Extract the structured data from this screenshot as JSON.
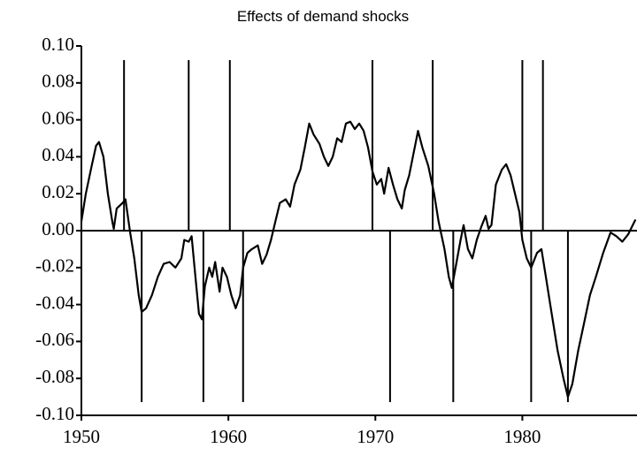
{
  "chart_data": {
    "type": "line",
    "title": "Effects of demand shocks",
    "x": [
      1950.0,
      1950.3,
      1950.7,
      1951.0,
      1951.2,
      1951.5,
      1951.8,
      1952.1,
      1952.2,
      1952.4,
      1952.8,
      1953.0,
      1953.3,
      1953.6,
      1953.9,
      1954.1,
      1954.4,
      1954.8,
      1955.2,
      1955.6,
      1956.0,
      1956.4,
      1956.8,
      1957.0,
      1957.3,
      1957.5,
      1957.7,
      1958.0,
      1958.2,
      1958.4,
      1958.7,
      1958.9,
      1959.1,
      1959.4,
      1959.6,
      1959.9,
      1960.2,
      1960.5,
      1960.8,
      1961.0,
      1961.3,
      1961.6,
      1962.0,
      1962.3,
      1962.6,
      1962.9,
      1963.2,
      1963.5,
      1963.9,
      1964.2,
      1964.5,
      1964.9,
      1965.2,
      1965.5,
      1965.8,
      1966.2,
      1966.5,
      1966.8,
      1967.1,
      1967.4,
      1967.7,
      1968.0,
      1968.3,
      1968.6,
      1968.9,
      1969.2,
      1969.5,
      1969.8,
      1970.1,
      1970.4,
      1970.6,
      1970.9,
      1971.2,
      1971.5,
      1971.8,
      1972.0,
      1972.3,
      1972.6,
      1972.9,
      1973.2,
      1973.6,
      1974.0,
      1974.3,
      1974.7,
      1975.0,
      1975.2,
      1975.5,
      1975.8,
      1976.0,
      1976.3,
      1976.6,
      1976.9,
      1977.2,
      1977.5,
      1977.7,
      1977.9,
      1978.2,
      1978.6,
      1978.9,
      1979.2,
      1979.5,
      1979.8,
      1980.0,
      1980.3,
      1980.6,
      1981.0,
      1981.3,
      1981.6,
      1982.0,
      1982.4,
      1982.8,
      1983.1,
      1983.4,
      1983.8,
      1984.2,
      1984.6,
      1985.0,
      1985.5,
      1986.0,
      1986.4,
      1986.8,
      1987.2,
      1987.7
    ],
    "values": [
      0.005,
      0.02,
      0.035,
      0.046,
      0.048,
      0.04,
      0.02,
      0.005,
      0.001,
      0.012,
      0.015,
      0.017,
      0.0,
      -0.015,
      -0.035,
      -0.044,
      -0.042,
      -0.035,
      -0.025,
      -0.018,
      -0.017,
      -0.02,
      -0.015,
      -0.005,
      -0.006,
      -0.003,
      -0.02,
      -0.045,
      -0.048,
      -0.03,
      -0.02,
      -0.025,
      -0.017,
      -0.033,
      -0.02,
      -0.025,
      -0.035,
      -0.042,
      -0.035,
      -0.02,
      -0.012,
      -0.01,
      -0.008,
      -0.018,
      -0.013,
      -0.005,
      0.005,
      0.015,
      0.017,
      0.013,
      0.025,
      0.033,
      0.045,
      0.058,
      0.052,
      0.047,
      0.04,
      0.035,
      0.04,
      0.05,
      0.048,
      0.058,
      0.059,
      0.055,
      0.058,
      0.054,
      0.045,
      0.032,
      0.025,
      0.028,
      0.02,
      0.034,
      0.025,
      0.017,
      0.012,
      0.022,
      0.03,
      0.042,
      0.054,
      0.045,
      0.035,
      0.02,
      0.005,
      -0.01,
      -0.025,
      -0.031,
      -0.018,
      -0.005,
      0.003,
      -0.01,
      -0.015,
      -0.005,
      0.002,
      0.008,
      0.001,
      0.003,
      0.025,
      0.033,
      0.036,
      0.03,
      0.02,
      0.01,
      -0.005,
      -0.015,
      -0.02,
      -0.012,
      -0.01,
      -0.025,
      -0.045,
      -0.065,
      -0.08,
      -0.09,
      -0.083,
      -0.065,
      -0.05,
      -0.035,
      -0.025,
      -0.012,
      -0.001,
      -0.003,
      -0.006,
      -0.002,
      0.006
    ],
    "peaks": [
      1952.9,
      1957.3,
      1960.1,
      1969.8,
      1973.9,
      1980.0,
      1981.4
    ],
    "troughs": [
      1954.1,
      1958.3,
      1961.0,
      1971.0,
      1975.3,
      1980.6,
      1983.1
    ],
    "color": "#000000",
    "xlim": [
      1950,
      1987.8
    ],
    "xticks": [
      1950,
      1960,
      1970,
      1980
    ],
    "ylim": [
      -0.1,
      0.1
    ],
    "yticks": [
      {
        "value": 0.1,
        "label": "0.10"
      },
      {
        "value": 0.08,
        "label": "0.08"
      },
      {
        "value": 0.06,
        "label": "0.06"
      },
      {
        "value": 0.04,
        "label": "0.04"
      },
      {
        "value": 0.02,
        "label": "0.02"
      },
      {
        "value": 0,
        "label": "0.00"
      },
      {
        "value": -0.02,
        "label": "-0.02"
      },
      {
        "value": -0.04,
        "label": "-0.04"
      },
      {
        "value": -0.06,
        "label": "-0.06"
      },
      {
        "value": -0.08,
        "label": "-0.08"
      },
      {
        "value": -0.1,
        "label": "-0.10"
      }
    ]
  }
}
